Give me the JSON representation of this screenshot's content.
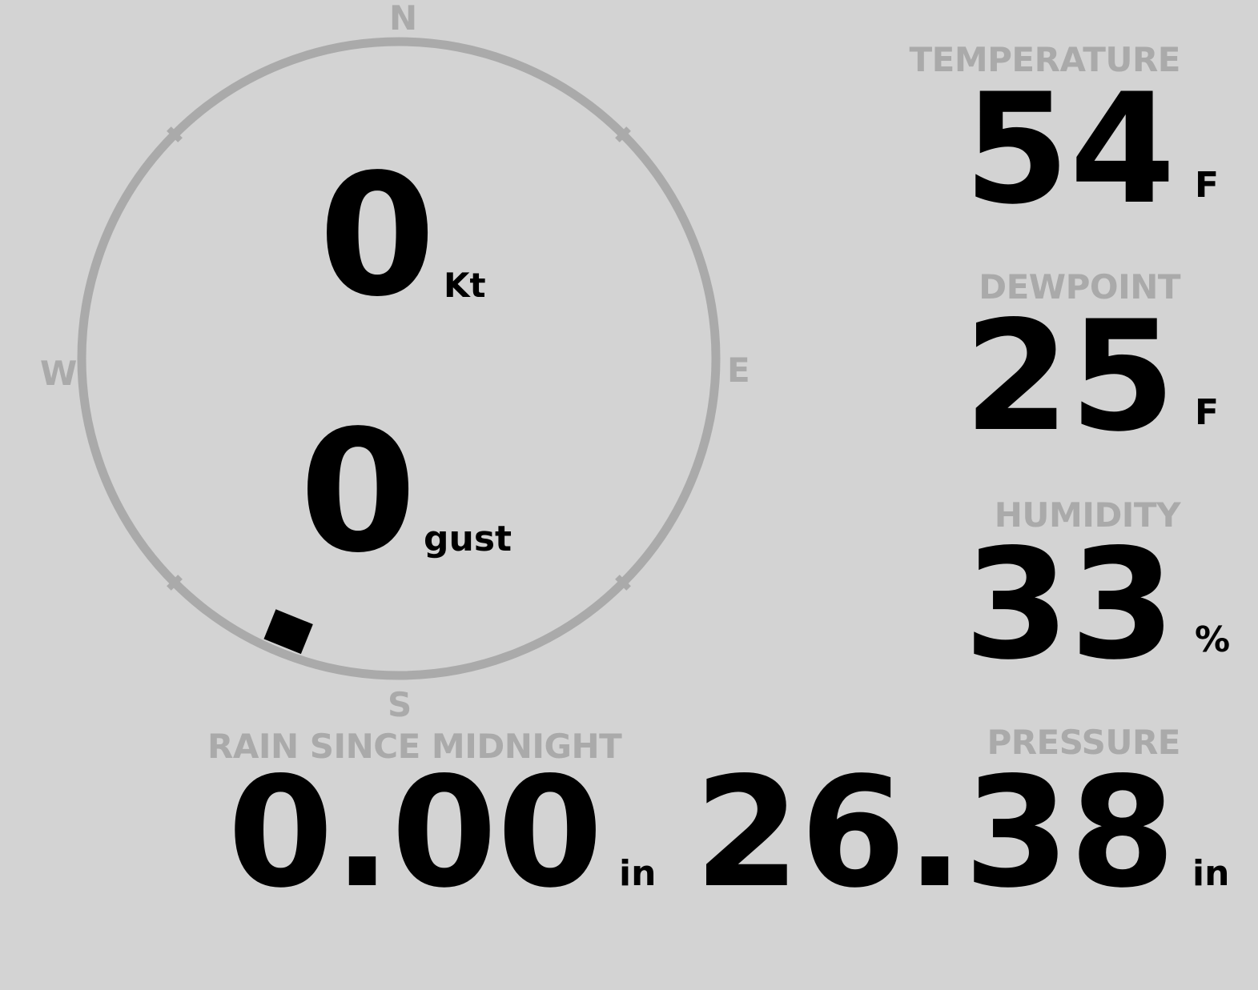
{
  "colors": {
    "background": "#d3d3d3",
    "label": "#aaaaaa",
    "value": "#000000",
    "ring": "#aaaaaa"
  },
  "compass": {
    "north": "N",
    "east": "E",
    "south": "S",
    "west": "W",
    "wind_direction_deg": 202,
    "wind_speed": "0",
    "wind_speed_unit": "Kt",
    "gust": "0",
    "gust_unit": "gust"
  },
  "temperature": {
    "label": "TEMPERATURE",
    "value": "54",
    "unit": "F"
  },
  "dewpoint": {
    "label": "DEWPOINT",
    "value": "25",
    "unit": "F"
  },
  "humidity": {
    "label": "HUMIDITY",
    "value": "33",
    "unit": "%"
  },
  "rain": {
    "label": "RAIN SINCE MIDNIGHT",
    "value": "0.00",
    "unit": "in"
  },
  "pressure": {
    "label": "PRESSURE",
    "value": "26.38",
    "unit": "in"
  }
}
